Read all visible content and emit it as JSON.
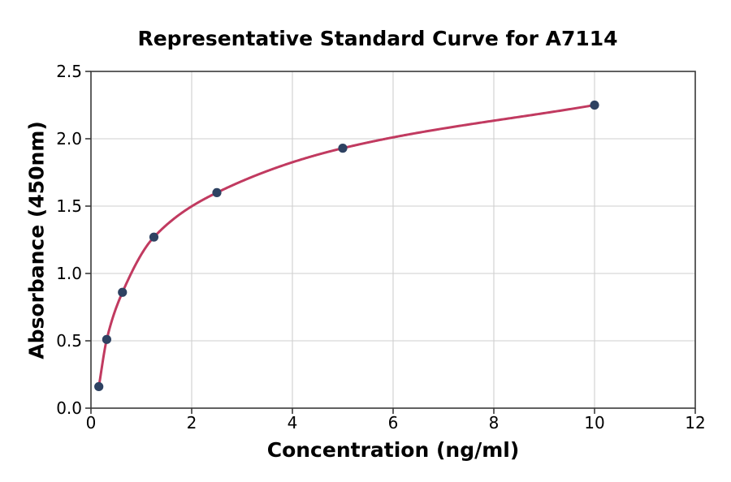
{
  "chart_data": {
    "type": "scatter",
    "title": "Representative Standard Curve for A7114",
    "xlabel": "Concentration (ng/ml)",
    "ylabel": "Absorbance (450nm)",
    "xlim": [
      0,
      12
    ],
    "ylim": [
      0,
      2.5
    ],
    "x_ticks": {
      "values": [
        0,
        2,
        4,
        6,
        8,
        10,
        12
      ],
      "labels": [
        "0",
        "2",
        "4",
        "6",
        "8",
        "10",
        "12"
      ]
    },
    "y_ticks": {
      "values": [
        0,
        0.5,
        1.0,
        1.5,
        2.0,
        2.5
      ],
      "labels": [
        "0.0",
        "0.5",
        "1.0",
        "1.5",
        "2.0",
        "2.5"
      ]
    },
    "grid": true,
    "legend_position": "none",
    "series": [
      {
        "name": "standard-points",
        "type": "scatter",
        "x": [
          0.156,
          0.313,
          0.625,
          1.25,
          2.5,
          5,
          10
        ],
        "y": [
          0.16,
          0.51,
          0.86,
          1.27,
          1.6,
          1.93,
          2.25
        ],
        "color": "#2e4262",
        "marker": "circle"
      },
      {
        "name": "fitted-curve",
        "type": "smooth-line",
        "through": "standard-points",
        "color": "#c13a60",
        "width": 3
      }
    ],
    "colors": {
      "grid": "#cfcfcf",
      "axis": "#3a3a3a",
      "text": "#000000",
      "background": "#ffffff"
    }
  }
}
